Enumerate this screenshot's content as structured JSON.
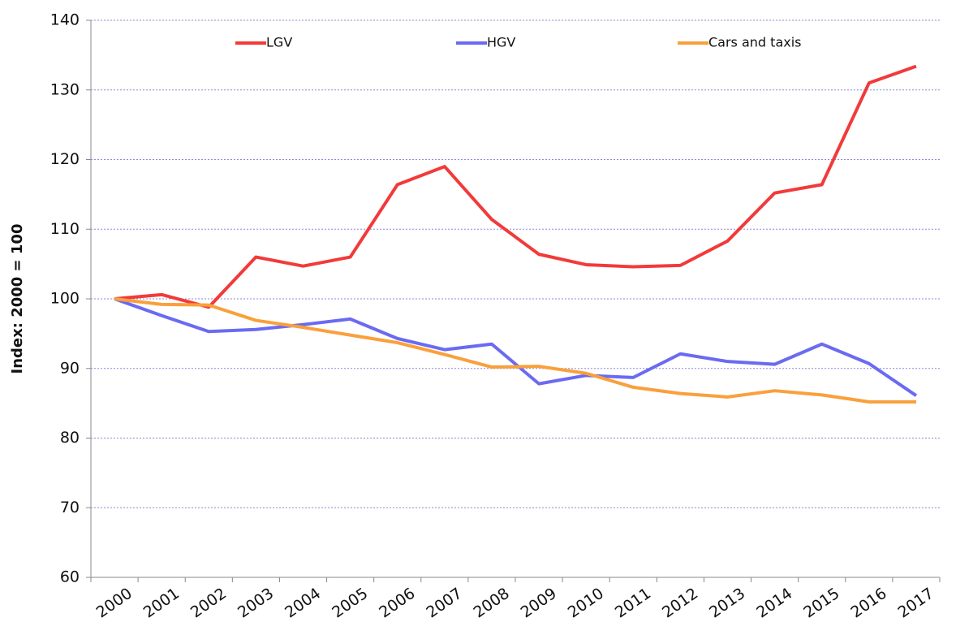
{
  "chart_data": {
    "type": "line",
    "y_label": "Index: 2000 = 100",
    "categories": [
      "2000",
      "2001",
      "2002",
      "2003",
      "2004",
      "2005",
      "2006",
      "2007",
      "2008",
      "2009",
      "2010",
      "2011",
      "2012",
      "2013",
      "2014",
      "2015",
      "2016",
      "2017"
    ],
    "series": [
      {
        "name": "LGV",
        "color": "#f23a3a",
        "values": [
          100,
          100.6,
          98.8,
          106,
          104.7,
          106,
          116.4,
          119,
          111.4,
          106.4,
          104.9,
          104.6,
          104.8,
          108.3,
          115.2,
          116.4,
          131,
          133.4
        ]
      },
      {
        "name": "HGV",
        "color": "#6a6af2",
        "values": [
          100,
          97.6,
          95.3,
          95.6,
          96.3,
          97.1,
          94.3,
          92.7,
          93.5,
          87.8,
          89,
          88.7,
          92.1,
          91,
          90.6,
          93.5,
          90.7,
          86.1
        ]
      },
      {
        "name": "Cars and taxis",
        "color": "#f9a03c",
        "values": [
          100,
          99.2,
          99.1,
          96.9,
          95.9,
          94.8,
          93.7,
          92,
          90.2,
          90.3,
          89.3,
          87.3,
          86.4,
          85.9,
          86.8,
          86.2,
          85.2,
          85.2
        ]
      }
    ],
    "ylim": [
      60,
      140
    ],
    "yticks": [
      60,
      70,
      80,
      90,
      100,
      110,
      120,
      130,
      140
    ],
    "grid": true
  }
}
